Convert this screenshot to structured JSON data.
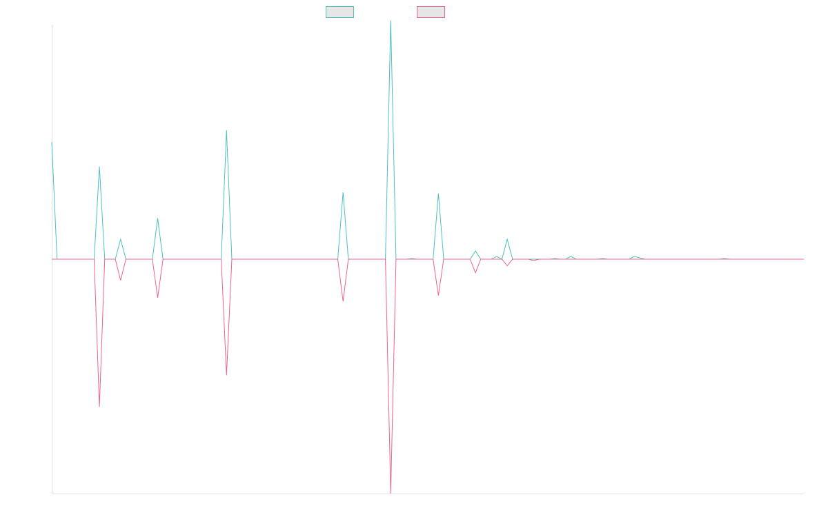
{
  "chart_data": {
    "type": "line",
    "title": "",
    "xlabel": "",
    "ylabel": "",
    "grid": false,
    "legend_position": "top-center",
    "x": [
      0,
      1,
      2,
      3,
      4,
      5,
      6,
      7,
      8,
      9,
      10,
      11,
      12,
      13,
      14,
      15,
      16,
      17,
      18,
      19,
      20,
      21,
      22,
      23,
      24,
      25,
      26,
      27,
      28,
      29,
      30,
      31,
      32,
      33,
      34,
      35,
      36,
      37,
      38,
      39,
      40,
      41,
      42,
      43,
      44,
      45,
      46,
      47,
      48,
      49,
      50,
      51,
      52,
      53,
      54,
      55,
      56,
      57,
      58,
      59,
      60,
      61,
      62,
      63,
      64,
      65,
      66,
      67,
      68,
      69,
      70,
      71,
      72,
      73,
      74,
      75,
      76,
      77,
      78,
      79,
      80,
      81,
      82,
      83,
      84,
      85,
      86,
      87,
      88,
      89,
      90,
      91,
      92,
      93,
      94,
      95,
      96,
      97,
      98,
      99,
      100,
      101,
      102,
      103,
      104,
      105,
      106,
      107,
      108,
      109,
      110,
      111,
      112,
      113,
      114,
      115,
      116,
      117,
      118,
      119,
      120,
      121,
      122,
      123,
      124,
      125,
      126,
      127,
      128,
      129,
      130,
      131,
      132,
      133,
      134,
      135,
      136,
      137,
      138,
      139,
      140,
      141,
      142
    ],
    "xlim": [
      0,
      142
    ],
    "ylim": [
      -1,
      1
    ],
    "series": [
      {
        "name": "",
        "color": "#4bc0c0",
        "values": [
          0.5,
          0,
          0,
          0,
          0,
          0,
          0,
          0,
          0,
          0.395,
          0,
          0,
          0,
          0.085,
          0,
          0,
          0,
          0,
          0,
          0,
          0.175,
          0,
          0,
          0,
          0,
          0,
          0,
          0,
          0,
          0,
          0,
          0,
          0,
          0.55,
          0,
          0,
          0,
          0,
          0,
          0,
          0,
          0,
          0,
          0,
          0,
          0,
          0,
          0,
          0,
          0,
          0,
          0,
          0,
          0,
          0,
          0.285,
          0,
          0,
          0,
          0,
          0,
          0,
          0,
          0,
          1.02,
          0,
          0,
          0,
          0.003,
          0,
          0,
          0,
          0,
          0.28,
          0,
          0,
          0,
          0,
          0,
          0,
          0.035,
          0,
          0,
          0,
          0.012,
          0,
          0.085,
          0,
          0,
          0,
          0,
          0,
          0,
          0,
          0,
          0.003,
          0,
          0,
          0.012,
          0,
          0,
          0,
          0,
          0,
          0.003,
          0,
          0,
          0,
          0,
          0,
          0.012,
          0.006,
          0,
          0,
          0,
          0,
          0,
          0,
          0,
          0,
          0,
          0,
          0,
          0,
          0,
          0,
          0,
          0.003,
          0,
          0,
          0,
          0,
          0,
          0,
          0,
          0,
          0,
          0,
          0,
          0,
          0,
          0,
          0
        ],
        "dashed_points": [
          0,
          0,
          0,
          0,
          0,
          0,
          0,
          0,
          0,
          0,
          0,
          0,
          0,
          0,
          0,
          0,
          0,
          0,
          0,
          0,
          0,
          0,
          0,
          0,
          0,
          0,
          0,
          0,
          0,
          0,
          0,
          0,
          0,
          0,
          0,
          0,
          0,
          0,
          0,
          0,
          0,
          0,
          0,
          0,
          0,
          0,
          0,
          0,
          0,
          0,
          0,
          0,
          0,
          0,
          0,
          0,
          0,
          0,
          0,
          0,
          0,
          0,
          0,
          0,
          0,
          0,
          0,
          0,
          0,
          0,
          0,
          0,
          0,
          0,
          0,
          0,
          0,
          0,
          0,
          0,
          0,
          0,
          0,
          0,
          0,
          0,
          0,
          0,
          0,
          0,
          0,
          0,
          0,
          0,
          0,
          0,
          0,
          0,
          0,
          0,
          0,
          0,
          0,
          0,
          0,
          0,
          0,
          0,
          0,
          0,
          0,
          0,
          0,
          0,
          0,
          0,
          0,
          0,
          0,
          0,
          0,
          0,
          0,
          0,
          0,
          0,
          0,
          0,
          0,
          0,
          0,
          0,
          0,
          0,
          0,
          0,
          0,
          0,
          0,
          0,
          0,
          0,
          0
        ]
      },
      {
        "name": "",
        "color": "#f0628a",
        "values": [
          0,
          0,
          0,
          0,
          0,
          0,
          0,
          0,
          0,
          -0.63,
          0,
          0,
          0,
          -0.09,
          0,
          0,
          0,
          0,
          0,
          0,
          -0.165,
          0,
          0,
          0,
          0,
          0,
          0,
          0,
          0,
          0,
          0,
          0,
          0,
          -0.495,
          0,
          0,
          0,
          0,
          0,
          0,
          0,
          0,
          0,
          0,
          0,
          0,
          0,
          0,
          0,
          0,
          0,
          0,
          0,
          0,
          0,
          -0.18,
          0,
          0,
          0,
          0,
          0,
          0,
          0,
          0,
          -1.0,
          0,
          0,
          0,
          0,
          0,
          0,
          0,
          0,
          -0.155,
          0,
          0,
          0,
          0,
          0,
          0,
          -0.058,
          0,
          0,
          0,
          0,
          0,
          -0.028,
          0,
          0,
          0,
          0,
          -0.006,
          0,
          0,
          0,
          0,
          0,
          0,
          0,
          0,
          0,
          0,
          0,
          0,
          0,
          0,
          0,
          0,
          0,
          0,
          0,
          0,
          0,
          0,
          0,
          0,
          0,
          0,
          0,
          0,
          0,
          0,
          0,
          0,
          0,
          0,
          0,
          0,
          0,
          0,
          0,
          0,
          0,
          0,
          0,
          0,
          0,
          0,
          0,
          0,
          0,
          0,
          0
        ]
      }
    ]
  }
}
